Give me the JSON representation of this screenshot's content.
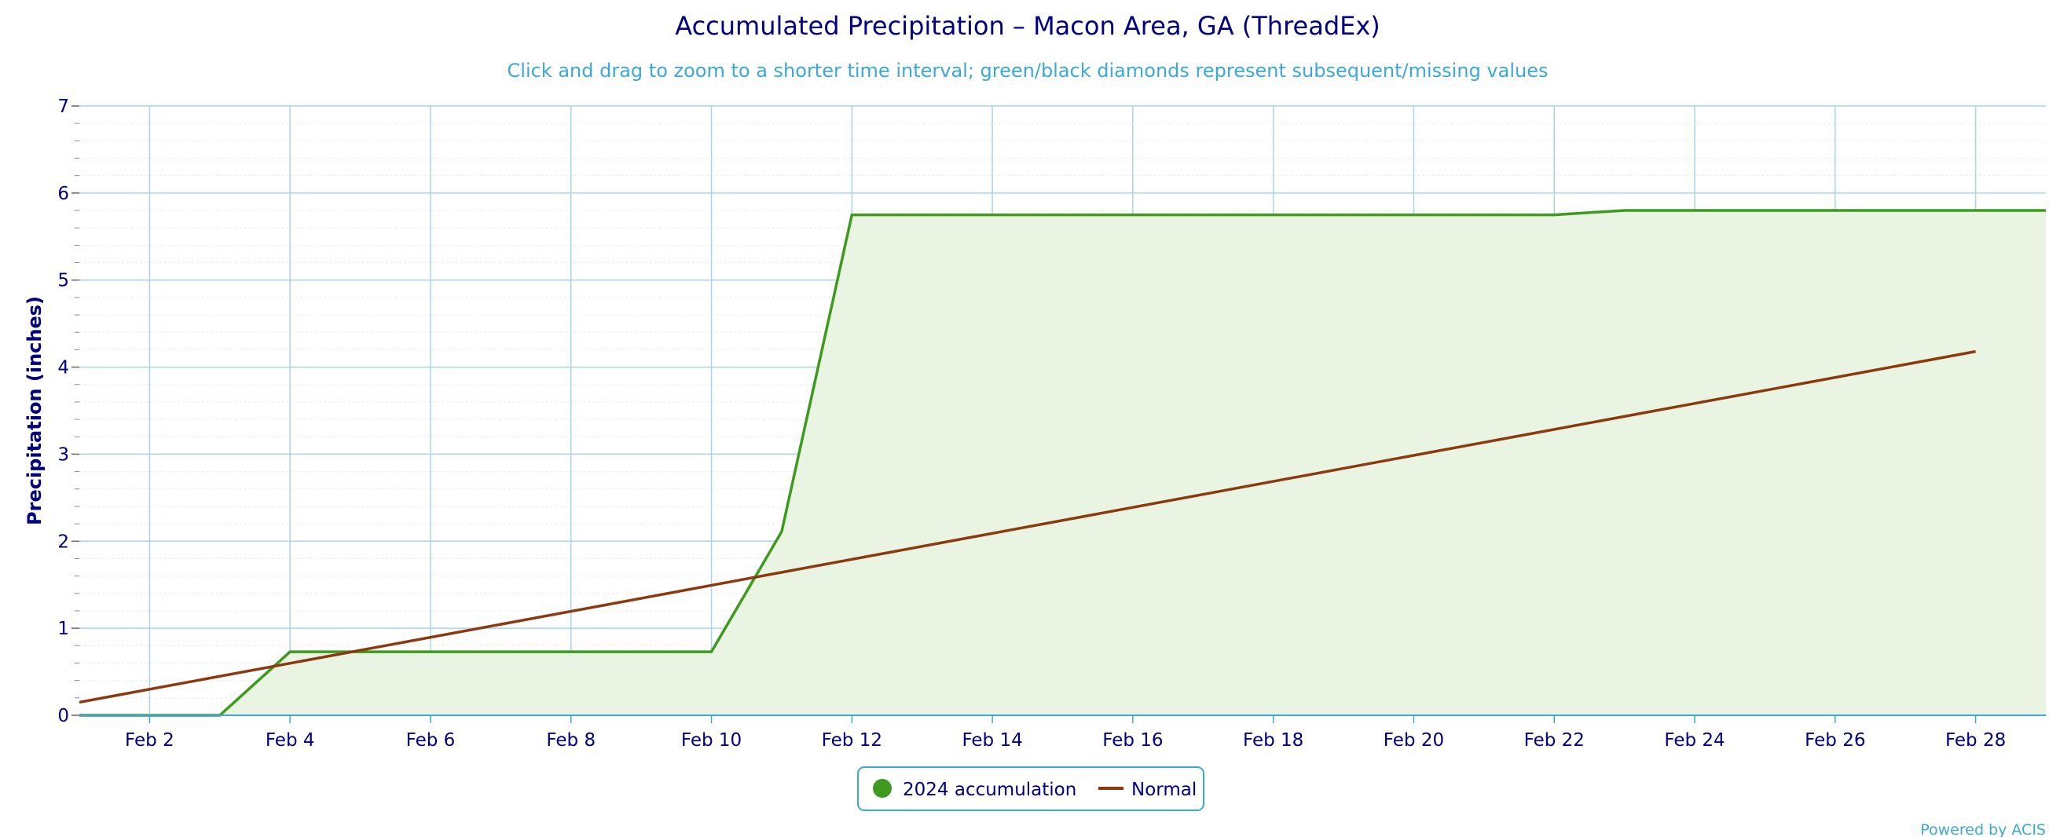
{
  "chart_data": {
    "type": "line",
    "title": "Accumulated Precipitation – Macon Area, GA (ThreadEx)",
    "subtitle": "Click and drag to zoom to a shorter time interval; green/black diamonds represent subsequent/missing values",
    "ylabel": "Precipitation (inches)",
    "xlabel": "",
    "ylim": [
      0,
      7
    ],
    "xlim": [
      "2024-02-01",
      "2024-02-29"
    ],
    "yticks": [
      "0",
      "1",
      "2",
      "3",
      "4",
      "5",
      "6",
      "7"
    ],
    "xticks": [
      {
        "date": "2024-02-02",
        "label": "Feb 2"
      },
      {
        "date": "2024-02-04",
        "label": "Feb 4"
      },
      {
        "date": "2024-02-06",
        "label": "Feb 6"
      },
      {
        "date": "2024-02-08",
        "label": "Feb 8"
      },
      {
        "date": "2024-02-10",
        "label": "Feb 10"
      },
      {
        "date": "2024-02-12",
        "label": "Feb 12"
      },
      {
        "date": "2024-02-14",
        "label": "Feb 14"
      },
      {
        "date": "2024-02-16",
        "label": "Feb 16"
      },
      {
        "date": "2024-02-18",
        "label": "Feb 18"
      },
      {
        "date": "2024-02-20",
        "label": "Feb 20"
      },
      {
        "date": "2024-02-22",
        "label": "Feb 22"
      },
      {
        "date": "2024-02-24",
        "label": "Feb 24"
      },
      {
        "date": "2024-02-26",
        "label": "Feb 26"
      },
      {
        "date": "2024-02-28",
        "label": "Feb 28"
      }
    ],
    "grid": true,
    "legend_placement": "bottom-center",
    "series": [
      {
        "name": "2024 accumulation",
        "style": "area",
        "color": "#3d9a1f",
        "fill": "#e9f5e2",
        "x": [
          "2024-02-01",
          "2024-02-02",
          "2024-02-03",
          "2024-02-04",
          "2024-02-05",
          "2024-02-06",
          "2024-02-07",
          "2024-02-08",
          "2024-02-09",
          "2024-02-10",
          "2024-02-11",
          "2024-02-12",
          "2024-02-13",
          "2024-02-14",
          "2024-02-15",
          "2024-02-16",
          "2024-02-17",
          "2024-02-18",
          "2024-02-19",
          "2024-02-20",
          "2024-02-21",
          "2024-02-22",
          "2024-02-23",
          "2024-02-24",
          "2024-02-25",
          "2024-02-26",
          "2024-02-27",
          "2024-02-28",
          "2024-02-29"
        ],
        "values": [
          0,
          0,
          0,
          0.73,
          0.73,
          0.73,
          0.73,
          0.73,
          0.73,
          0.73,
          2.11,
          5.75,
          5.75,
          5.75,
          5.75,
          5.75,
          5.75,
          5.75,
          5.75,
          5.75,
          5.75,
          5.75,
          5.8,
          5.8,
          5.8,
          5.8,
          5.8,
          5.8,
          5.8
        ]
      },
      {
        "name": "Normal",
        "style": "line",
        "color": "#8b3a10",
        "x": [
          "2024-02-01",
          "2024-02-28"
        ],
        "values": [
          0.15,
          4.18
        ]
      }
    ]
  },
  "legend": {
    "items": [
      {
        "label": "2024 accumulation",
        "marker": "circle",
        "color": "#3d9a1f"
      },
      {
        "label": "Normal",
        "marker": "line",
        "color": "#8b3a10"
      }
    ]
  },
  "credit": "Powered by ACIS",
  "colors": {
    "grid": "#a9d3ec",
    "minor_grid": "#e4e4e4",
    "axis": "#3ba8d8",
    "legend_border": "#3ba8d8"
  }
}
